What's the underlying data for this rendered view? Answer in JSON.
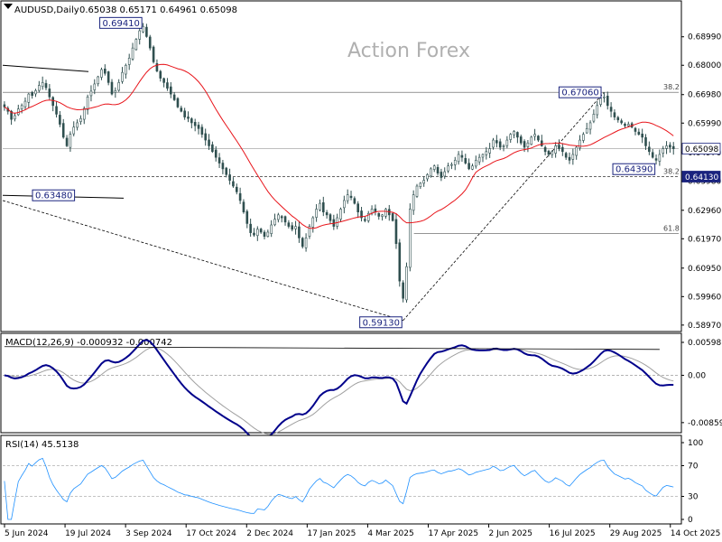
{
  "header": {
    "symbol_text": "AUDUSD,Daily",
    "ohlc_text": "0.65038 0.65171 0.64961 0.65098"
  },
  "watermark": "Action Forex",
  "colors": {
    "background": "#ffffff",
    "candle": "#2f4f4f",
    "sma": "#e8141a",
    "macd_line": "#00008b",
    "macd_signal": "#a0a0a0",
    "rsi_line": "#1e90ff",
    "label_box": "#1a237e"
  },
  "chart_data": [
    {
      "type": "candlestick",
      "title": "AUDUSD,Daily",
      "x_tick_labels": [
        "5 Jun 2024",
        "19 Jul 2024",
        "3 Sep 2024",
        "17 Oct 2024",
        "2 Dec 2024",
        "17 Jan 2025",
        "4 Mar 2025",
        "17 Apr 2025",
        "2 Jun 2025",
        "16 Jul 2025",
        "29 Aug 2025",
        "14 Oct 2025"
      ],
      "y_tick_labels": [
        "0.68990",
        "0.68000",
        "0.66980",
        "0.65990",
        "0.64970",
        "0.63980",
        "0.62960",
        "0.61970",
        "0.60950",
        "0.59960",
        "0.58970"
      ],
      "ylim": [
        0.5884,
        0.7008
      ],
      "current_price": "0.65098",
      "close_series": [
        0.6655,
        0.664,
        0.6612,
        0.6625,
        0.6648,
        0.666,
        0.6675,
        0.67,
        0.6695,
        0.6712,
        0.673,
        0.674,
        0.6722,
        0.669,
        0.666,
        0.663,
        0.6595,
        0.655,
        0.652,
        0.656,
        0.6585,
        0.66,
        0.6615,
        0.665,
        0.669,
        0.671,
        0.6735,
        0.676,
        0.6785,
        0.6772,
        0.674,
        0.67,
        0.6712,
        0.674,
        0.6775,
        0.68,
        0.6825,
        0.686,
        0.689,
        0.692,
        0.6935,
        0.69,
        0.686,
        0.6812,
        0.678,
        0.6755,
        0.674,
        0.672,
        0.67,
        0.668,
        0.6655,
        0.664,
        0.662,
        0.6615,
        0.66,
        0.659,
        0.658,
        0.656,
        0.654,
        0.652,
        0.65,
        0.648,
        0.646,
        0.644,
        0.642,
        0.64,
        0.638,
        0.636,
        0.633,
        0.629,
        0.625,
        0.6218,
        0.621,
        0.623,
        0.622,
        0.6205,
        0.622,
        0.6245,
        0.6265,
        0.628,
        0.627,
        0.6255,
        0.624,
        0.623,
        0.624,
        0.62,
        0.617,
        0.62,
        0.624,
        0.627,
        0.63,
        0.632,
        0.629,
        0.628,
        0.626,
        0.624,
        0.627,
        0.63,
        0.633,
        0.635,
        0.634,
        0.632,
        0.629,
        0.627,
        0.626,
        0.6285,
        0.63,
        0.629,
        0.6275,
        0.628,
        0.63,
        0.628,
        0.626,
        0.618,
        0.605,
        0.599,
        0.61,
        0.63,
        0.635,
        0.638,
        0.639,
        0.64,
        0.642,
        0.644,
        0.645,
        0.6425,
        0.641,
        0.643,
        0.645,
        0.6455,
        0.647,
        0.649,
        0.648,
        0.646,
        0.644,
        0.645,
        0.647,
        0.648,
        0.649,
        0.65,
        0.651,
        0.654,
        0.653,
        0.6515,
        0.652,
        0.654,
        0.656,
        0.657,
        0.655,
        0.653,
        0.6515,
        0.653,
        0.655,
        0.656,
        0.654,
        0.652,
        0.65,
        0.649,
        0.65,
        0.652,
        0.651,
        0.65,
        0.648,
        0.647,
        0.649,
        0.6515,
        0.654,
        0.656,
        0.658,
        0.66,
        0.663,
        0.666,
        0.6685,
        0.669,
        0.666,
        0.664,
        0.662,
        0.661,
        0.66,
        0.659,
        0.6595,
        0.6585,
        0.657,
        0.656,
        0.655,
        0.652,
        0.65,
        0.648,
        0.647,
        0.649,
        0.651,
        0.652,
        0.6515,
        0.651
      ],
      "annotations": [
        {
          "label": "0.69410",
          "kind": "high-marker"
        },
        {
          "label": "0.63480",
          "kind": "low-marker"
        },
        {
          "label": "0.59130",
          "kind": "low-marker"
        },
        {
          "label": "0.67060",
          "kind": "high-marker"
        },
        {
          "label": "0.64390",
          "kind": "low-marker"
        },
        {
          "label": "0.64130",
          "kind": "price-tag"
        },
        {
          "label": "38.2",
          "kind": "fib-level-upper"
        },
        {
          "label": "38.2",
          "kind": "fib-level-lower"
        },
        {
          "label": "61.8",
          "kind": "fib-level"
        }
      ],
      "series": [
        {
          "name": "SMA",
          "type": "line"
        }
      ]
    },
    {
      "type": "line",
      "title": "MACD(12,26,9) -0.000932 -0.000742",
      "y_tick_labels": [
        "0.005981",
        "0.00",
        "-0.00859"
      ],
      "ylim": [
        -0.0096,
        0.0068
      ],
      "zero_line": true,
      "series": [
        {
          "type": "macd"
        },
        {
          "type": "signal"
        }
      ]
    },
    {
      "type": "line",
      "title": "RSI(14) 45.5138",
      "y_tick_labels": [
        "100",
        "70",
        "30",
        "0"
      ],
      "ylim": [
        0,
        100
      ],
      "levels": [
        70,
        30
      ],
      "series": [
        {
          "type": "rsi"
        }
      ]
    }
  ]
}
